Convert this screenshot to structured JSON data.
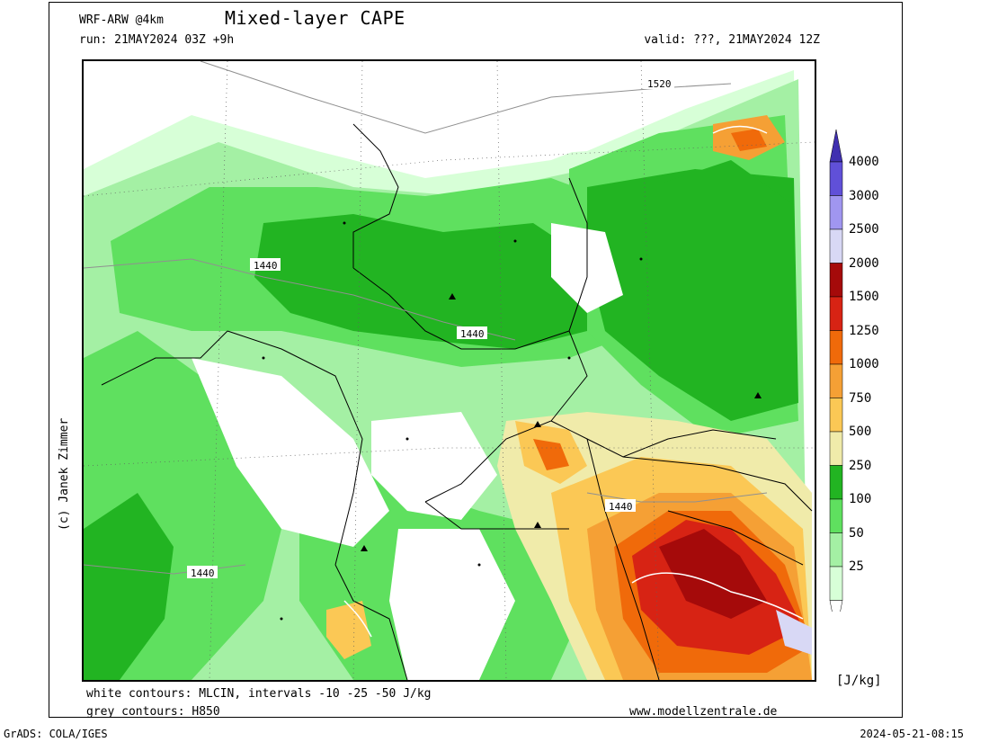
{
  "header": {
    "model": "WRF-ARW @4km",
    "title": "Mixed-layer CAPE",
    "run": "run: 21MAY2024 03Z +9h",
    "valid": "valid: ???, 21MAY2024 12Z"
  },
  "map": {
    "contour_labels": [
      "1520",
      "1440",
      "1440",
      "1440",
      "1440"
    ],
    "colors": {
      "25": "#d7ffd7",
      "50": "#a4f0a4",
      "100": "#5fe05f",
      "250": "#22b422",
      "500": "#f0ebaa",
      "750": "#fbc855",
      "1000": "#f5a035",
      "1250": "#f06a0a",
      "1500": "#d72314",
      "2000": "#a50a0a",
      "2500": "#d8d8f5",
      "3000": "#a096f0",
      "4000": "#6050d8"
    }
  },
  "colorbar": {
    "labels": [
      "4000",
      "3000",
      "2500",
      "2000",
      "1500",
      "1250",
      "1000",
      "750",
      "500",
      "250",
      "100",
      "50",
      "25"
    ],
    "units": "[J/kg]"
  },
  "footer": {
    "legend_white": "white contours: MLCIN, intervals -10 -25 -50 J/kg",
    "legend_grey": "grey contours: H850",
    "website": "www.modellzentrale.de",
    "copyright": "(c) Janek Zimmer",
    "software": "GrADS: COLA/IGES",
    "timestamp": "2024-05-21-08:15"
  }
}
